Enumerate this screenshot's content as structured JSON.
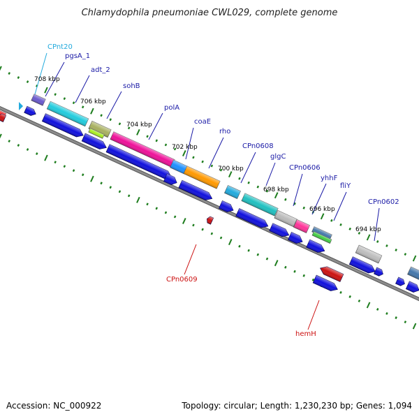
{
  "title": "Chlamydophila pneumoniae CWL029, complete genome",
  "footer": {
    "accession": "Accession: NC_000922",
    "summary": "Topology: circular; Length: 1,230,230 bp; Genes: 1,094"
  },
  "scale_labels": [
    "708 kbp",
    "706 kbp",
    "704 kbp",
    "702 kbp",
    "700 kbp",
    "698 kbp",
    "696 kbp",
    "694 kbp"
  ],
  "colors": {
    "backbone": "#7a7a7a",
    "tick": "#1e7d1e",
    "label_forward": "#1a1aa6",
    "label_reverse": "#cc1111",
    "label_rna": "#22aadd",
    "cds": "#1010dd"
  },
  "gene_labels": [
    {
      "text": "CPnt20",
      "color": "#22aadd"
    },
    {
      "text": "pgsA_1",
      "color": "#1a1aa6"
    },
    {
      "text": "adt_2",
      "color": "#1a1aa6"
    },
    {
      "text": "sohB",
      "color": "#1a1aa6"
    },
    {
      "text": "polA",
      "color": "#1a1aa6"
    },
    {
      "text": "coaE",
      "color": "#1a1aa6"
    },
    {
      "text": "rho",
      "color": "#1a1aa6"
    },
    {
      "text": "CPn0608",
      "color": "#1a1aa6"
    },
    {
      "text": "glgC",
      "color": "#1a1aa6"
    },
    {
      "text": "CPn0606",
      "color": "#1a1aa6"
    },
    {
      "text": "yhhF",
      "color": "#1a1aa6"
    },
    {
      "text": "fliY",
      "color": "#1a1aa6"
    },
    {
      "text": "CPn0602",
      "color": "#1a1aa6"
    },
    {
      "text": "CPn0609",
      "color": "#cc1111"
    },
    {
      "text": "hemH",
      "color": "#cc1111"
    }
  ],
  "feature_colors": [
    "#6a5acd",
    "#22ccdd",
    "#a8b060",
    "#ee1199",
    "#1e90ff",
    "#ff9900",
    "#22aadd",
    "#20c0c0",
    "#bbbbbb",
    "#ff3399",
    "#4477aa",
    "#44cc44",
    "#bdbdbd",
    "#ff0000"
  ]
}
